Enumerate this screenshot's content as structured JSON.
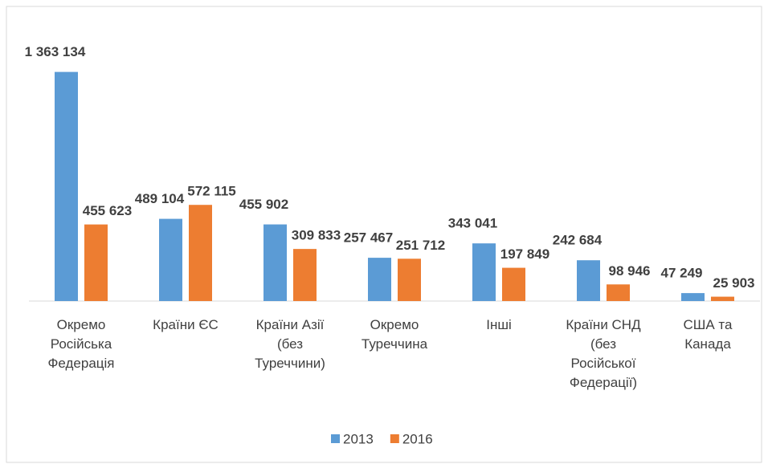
{
  "chart_data": {
    "type": "bar",
    "categories": [
      "Окремо Російська Федерація",
      "Країни ЄС",
      "Країни Азії (без Туреччини)",
      "Окремо Туреччина",
      "Інші",
      "Країни СНД (без Російської Федерації)",
      "США та Канада"
    ],
    "series": [
      {
        "name": "2013",
        "color": "#5b9bd5",
        "values": [
          1363134,
          489104,
          455902,
          257467,
          343041,
          242684,
          47249
        ],
        "value_labels": [
          "1 363 134",
          "489 104",
          "455 902",
          "257 467",
          "343 041",
          "242 684",
          "47 249"
        ]
      },
      {
        "name": "2016",
        "color": "#ed7d31",
        "values": [
          455623,
          572115,
          309833,
          251712,
          197849,
          98946,
          25903
        ],
        "value_labels": [
          "455 623",
          "572 115",
          "309 833",
          "251 712",
          "197 849",
          "98 946",
          "25 903"
        ]
      }
    ],
    "ylim": [
      0,
      1600000
    ],
    "legend": "bottom"
  }
}
